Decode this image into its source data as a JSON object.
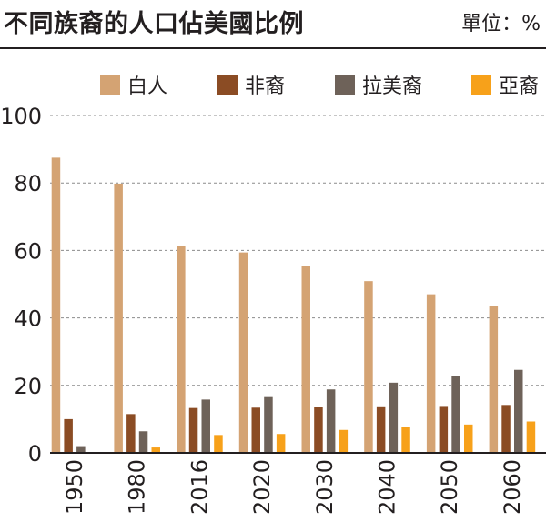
{
  "header": {
    "title": "不同族裔的人口佔美國比例",
    "unit": "單位：%"
  },
  "chart_data": {
    "type": "bar",
    "title": "不同族裔的人口佔美國比例",
    "unit_label": "單位：%",
    "xlabel": "",
    "ylabel": "",
    "categories": [
      "1950",
      "1980",
      "2016",
      "2020",
      "2030",
      "2040",
      "2050",
      "2060"
    ],
    "series": [
      {
        "name": "白人",
        "color": "#d4a373",
        "values": [
          87.5,
          79.8,
          61.3,
          59.4,
          55.4,
          50.9,
          47.0,
          43.6
        ]
      },
      {
        "name": "非裔",
        "color": "#8b4c24",
        "values": [
          10.0,
          11.5,
          13.3,
          13.4,
          13.7,
          13.8,
          13.9,
          14.2
        ]
      },
      {
        "name": "拉美裔",
        "color": "#6e6259",
        "values": [
          2.0,
          6.4,
          15.8,
          16.8,
          18.8,
          20.8,
          22.7,
          24.6
        ]
      },
      {
        "name": "亞裔",
        "color": "#f7a11a",
        "values": [
          0.0,
          1.6,
          5.3,
          5.6,
          6.8,
          7.7,
          8.4,
          9.3
        ]
      }
    ],
    "yticks": [
      0,
      20,
      40,
      60,
      80,
      100
    ],
    "ylim": [
      0,
      100
    ],
    "grid": true,
    "legend_position": "top"
  }
}
